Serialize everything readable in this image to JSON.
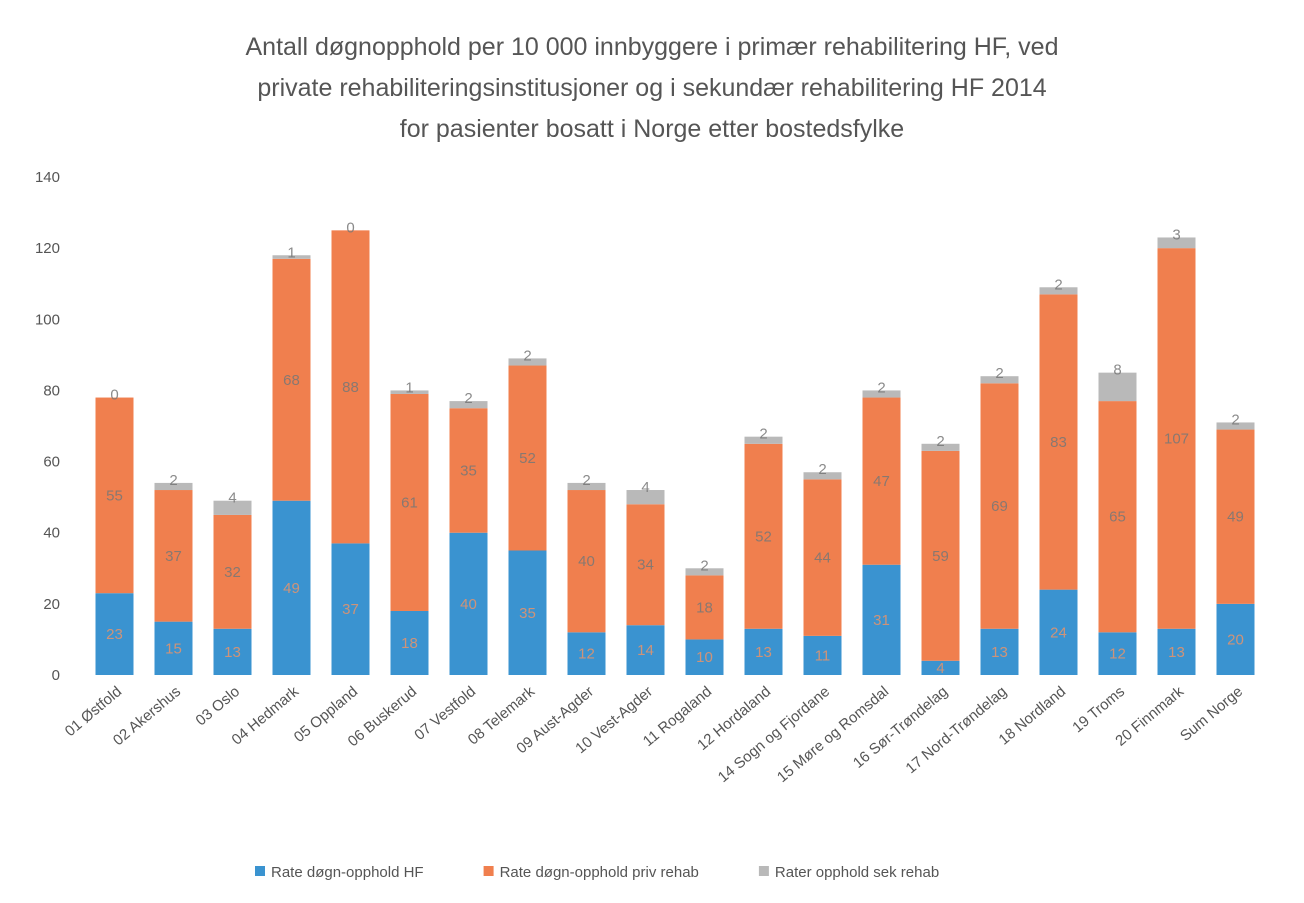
{
  "chart_data": {
    "type": "stacked-bar",
    "title": [
      "Antall døgnopphold per 10 000 innbyggere i primær rehabilitering HF, ved",
      "private rehabiliteringsinstitusjoner og i sekundær rehabilitering HF 2014",
      "for pasienter bosatt i Norge etter bostedsfylke"
    ],
    "categories": [
      "01 Østfold",
      "02 Akershus",
      "03 Oslo",
      "04 Hedmark",
      "05 Oppland",
      "06 Buskerud",
      "07 Vestfold",
      "08 Telemark",
      "09 Aust-Agder",
      "10 Vest-Agder",
      "11 Rogaland",
      "12 Hordaland",
      "14 Sogn og Fjordane",
      "15 Møre og Romsdal",
      "16 Sør-Trøndelag",
      "17 Nord-Trøndelag",
      "18 Nordland",
      "19 Troms",
      "20 Finnmark",
      "Sum Norge"
    ],
    "series": [
      {
        "name": "Rate døgn-opphold HF",
        "color": "#3a93d0",
        "values": [
          23,
          15,
          13,
          49,
          37,
          18,
          40,
          35,
          12,
          14,
          10,
          13,
          11,
          31,
          4,
          13,
          24,
          12,
          13,
          20
        ]
      },
      {
        "name": "Rate døgn-opphold priv rehab",
        "color": "#f07f4e",
        "values": [
          55,
          37,
          32,
          68,
          88,
          61,
          35,
          52,
          40,
          34,
          18,
          52,
          44,
          47,
          59,
          69,
          83,
          65,
          107,
          49
        ]
      },
      {
        "name": "Rater opphold sek rehab",
        "color": "#b9b9b9",
        "values": [
          0,
          2,
          4,
          1,
          0,
          1,
          2,
          2,
          2,
          4,
          2,
          2,
          2,
          2,
          2,
          2,
          2,
          8,
          3,
          2
        ]
      }
    ],
    "ylim": [
      0,
      140
    ],
    "yticks": [
      0,
      20,
      40,
      60,
      80,
      100,
      120,
      140
    ],
    "legend": "bottom"
  }
}
